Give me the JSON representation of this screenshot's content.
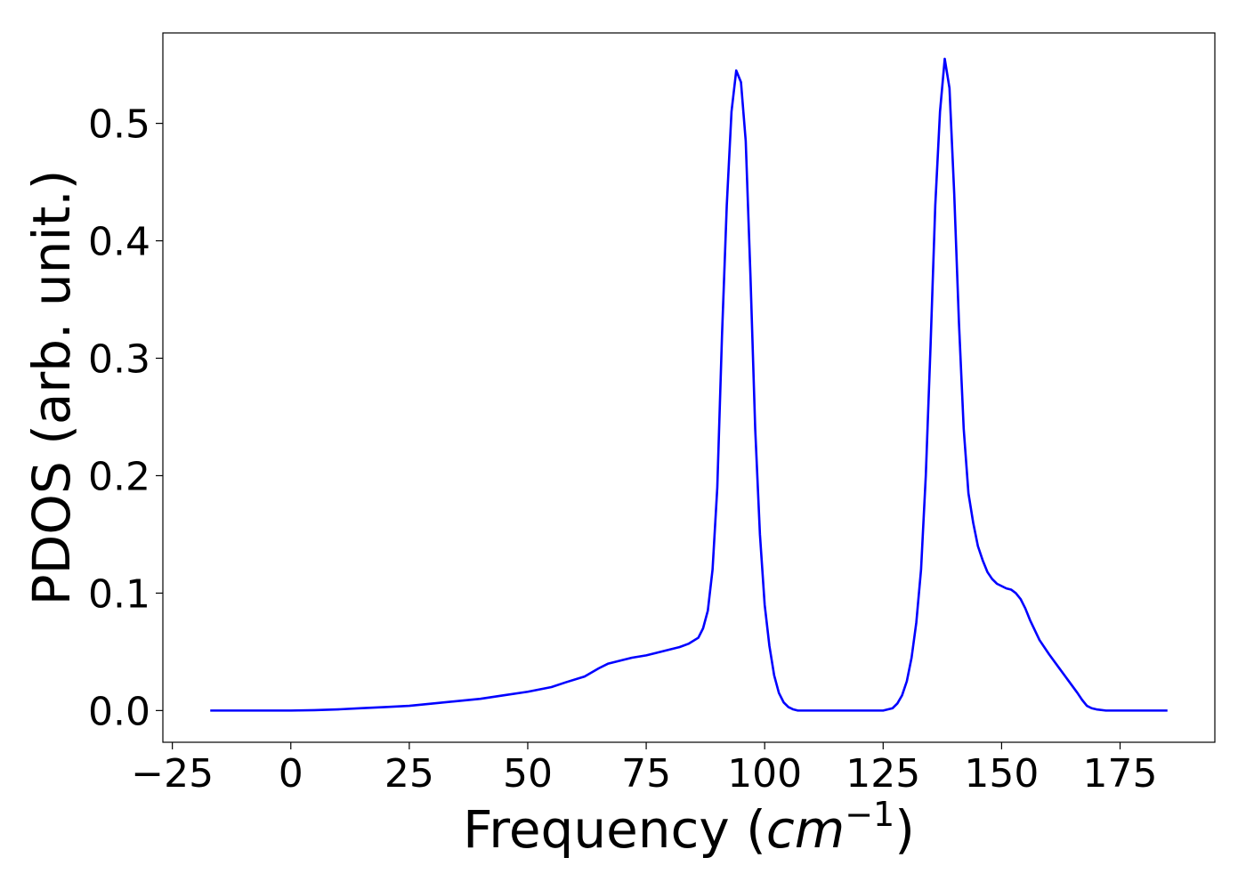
{
  "chart_data": {
    "type": "line",
    "xlabel": "Frequency",
    "xlabel_unit_base": "cm",
    "xlabel_unit_exp": "−1",
    "ylabel": "PDOS (arb. unit.)",
    "xlim": [
      -27,
      195
    ],
    "ylim": [
      -0.027,
      0.577
    ],
    "x_ticks": [
      -25,
      0,
      25,
      50,
      75,
      100,
      125,
      150,
      175
    ],
    "x_tick_labels": [
      "−25",
      "0",
      "25",
      "50",
      "75",
      "100",
      "125",
      "150",
      "175"
    ],
    "y_ticks": [
      0.0,
      0.1,
      0.2,
      0.3,
      0.4,
      0.5
    ],
    "y_tick_labels": [
      "0.0",
      "0.1",
      "0.2",
      "0.3",
      "0.4",
      "0.5"
    ],
    "grid": false,
    "series": [
      {
        "color": "#0000ff",
        "x": [
          -17,
          -10,
          0,
          5,
          10,
          15,
          20,
          25,
          30,
          35,
          40,
          45,
          50,
          55,
          58,
          62,
          65,
          67,
          70,
          72,
          75,
          77,
          80,
          82,
          84,
          86,
          87,
          88,
          89,
          90,
          91,
          92,
          93,
          94,
          95,
          96,
          97,
          98,
          99,
          100,
          101,
          102,
          103,
          104,
          105,
          106,
          107,
          110,
          115,
          120,
          125,
          127,
          128,
          129,
          130,
          131,
          132,
          133,
          134,
          135,
          136,
          137,
          138,
          139,
          140,
          141,
          142,
          143,
          144,
          145,
          146,
          147,
          148,
          149,
          150,
          151,
          152,
          153,
          154,
          155,
          156,
          158,
          160,
          162,
          164,
          166,
          167,
          168,
          169,
          170,
          172,
          175,
          180,
          185
        ],
        "y": [
          0.0,
          0.0,
          0.0,
          0.0003,
          0.001,
          0.002,
          0.003,
          0.004,
          0.006,
          0.008,
          0.01,
          0.013,
          0.016,
          0.02,
          0.024,
          0.029,
          0.036,
          0.04,
          0.043,
          0.045,
          0.047,
          0.049,
          0.052,
          0.054,
          0.057,
          0.062,
          0.07,
          0.085,
          0.12,
          0.19,
          0.32,
          0.43,
          0.51,
          0.545,
          0.535,
          0.485,
          0.37,
          0.24,
          0.15,
          0.09,
          0.055,
          0.03,
          0.015,
          0.007,
          0.003,
          0.001,
          0.0,
          0.0,
          0.0,
          0.0,
          0.0,
          0.002,
          0.006,
          0.013,
          0.025,
          0.045,
          0.075,
          0.12,
          0.2,
          0.31,
          0.43,
          0.51,
          0.555,
          0.53,
          0.44,
          0.33,
          0.24,
          0.185,
          0.16,
          0.14,
          0.128,
          0.118,
          0.112,
          0.108,
          0.106,
          0.104,
          0.103,
          0.1,
          0.095,
          0.087,
          0.077,
          0.06,
          0.048,
          0.037,
          0.026,
          0.015,
          0.009,
          0.004,
          0.002,
          0.001,
          0.0,
          0.0,
          0.0,
          0.0
        ]
      }
    ]
  }
}
